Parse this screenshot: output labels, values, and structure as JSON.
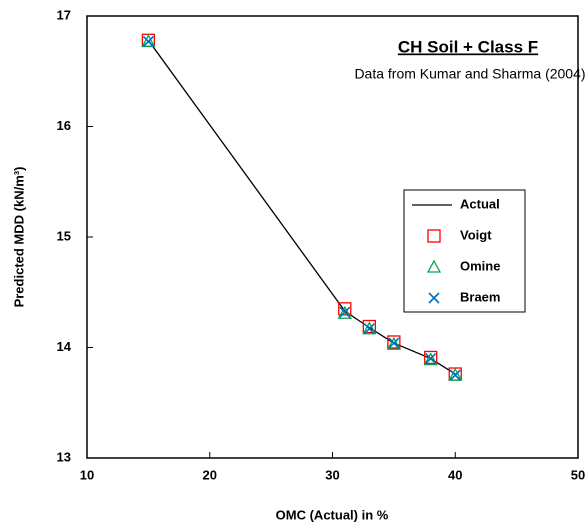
{
  "chart_data": {
    "type": "line",
    "title": "CH Soil + Class F",
    "subtitle": "Data from Kumar and Sharma (2004)",
    "x_label": "OMC (Actual) in %",
    "y_label": "Predicted MDD (kN/m³)",
    "x": [
      15,
      31,
      33,
      35,
      38,
      40
    ],
    "series": [
      {
        "name": "Actual",
        "color": "#000000",
        "marker": "line",
        "values": [
          16.78,
          14.33,
          14.18,
          14.04,
          13.9,
          13.76
        ]
      },
      {
        "name": "Voigt",
        "color": "#ff0000",
        "marker": "square",
        "values": [
          16.78,
          14.35,
          14.19,
          14.05,
          13.91,
          13.76
        ]
      },
      {
        "name": "Omine",
        "color": "#00a651",
        "marker": "triangle",
        "values": [
          16.77,
          14.31,
          14.17,
          14.03,
          13.89,
          13.75
        ]
      },
      {
        "name": "Braem",
        "color": "#0070c0",
        "marker": "cross",
        "values": [
          16.77,
          14.32,
          14.17,
          14.04,
          13.9,
          13.75
        ]
      }
    ],
    "xlim": [
      10,
      50
    ],
    "xticks": [
      10,
      20,
      30,
      40,
      50
    ],
    "ylim": [
      13,
      17
    ],
    "yticks": [
      13,
      14,
      15,
      16,
      17
    ],
    "grid": false,
    "legend": "center right"
  }
}
